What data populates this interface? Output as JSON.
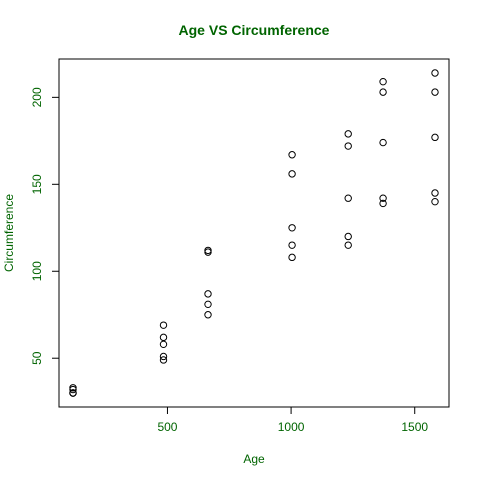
{
  "chart_data": {
    "type": "scatter",
    "title": "Age VS Circumference",
    "xlabel": "Age",
    "ylabel": "Circumference",
    "xlim": [
      118,
      1582
    ],
    "ylim": [
      30,
      214
    ],
    "x_ticks": [
      500,
      1000,
      1500
    ],
    "y_ticks": [
      50,
      100,
      150,
      200
    ],
    "text_color": "#006400",
    "point_color": "#000000",
    "grid": false,
    "points": [
      {
        "x": 118,
        "y": 30
      },
      {
        "x": 118,
        "y": 30
      },
      {
        "x": 118,
        "y": 30
      },
      {
        "x": 118,
        "y": 32
      },
      {
        "x": 118,
        "y": 33
      },
      {
        "x": 484,
        "y": 49
      },
      {
        "x": 484,
        "y": 51
      },
      {
        "x": 484,
        "y": 58
      },
      {
        "x": 484,
        "y": 62
      },
      {
        "x": 484,
        "y": 69
      },
      {
        "x": 664,
        "y": 75
      },
      {
        "x": 664,
        "y": 81
      },
      {
        "x": 664,
        "y": 87
      },
      {
        "x": 664,
        "y": 111
      },
      {
        "x": 664,
        "y": 112
      },
      {
        "x": 1004,
        "y": 108
      },
      {
        "x": 1004,
        "y": 115
      },
      {
        "x": 1004,
        "y": 125
      },
      {
        "x": 1004,
        "y": 156
      },
      {
        "x": 1004,
        "y": 167
      },
      {
        "x": 1231,
        "y": 115
      },
      {
        "x": 1231,
        "y": 120
      },
      {
        "x": 1231,
        "y": 142
      },
      {
        "x": 1231,
        "y": 172
      },
      {
        "x": 1231,
        "y": 179
      },
      {
        "x": 1372,
        "y": 139
      },
      {
        "x": 1372,
        "y": 142
      },
      {
        "x": 1372,
        "y": 174
      },
      {
        "x": 1372,
        "y": 203
      },
      {
        "x": 1372,
        "y": 209
      },
      {
        "x": 1582,
        "y": 140
      },
      {
        "x": 1582,
        "y": 145
      },
      {
        "x": 1582,
        "y": 177
      },
      {
        "x": 1582,
        "y": 203
      },
      {
        "x": 1582,
        "y": 214
      }
    ]
  }
}
